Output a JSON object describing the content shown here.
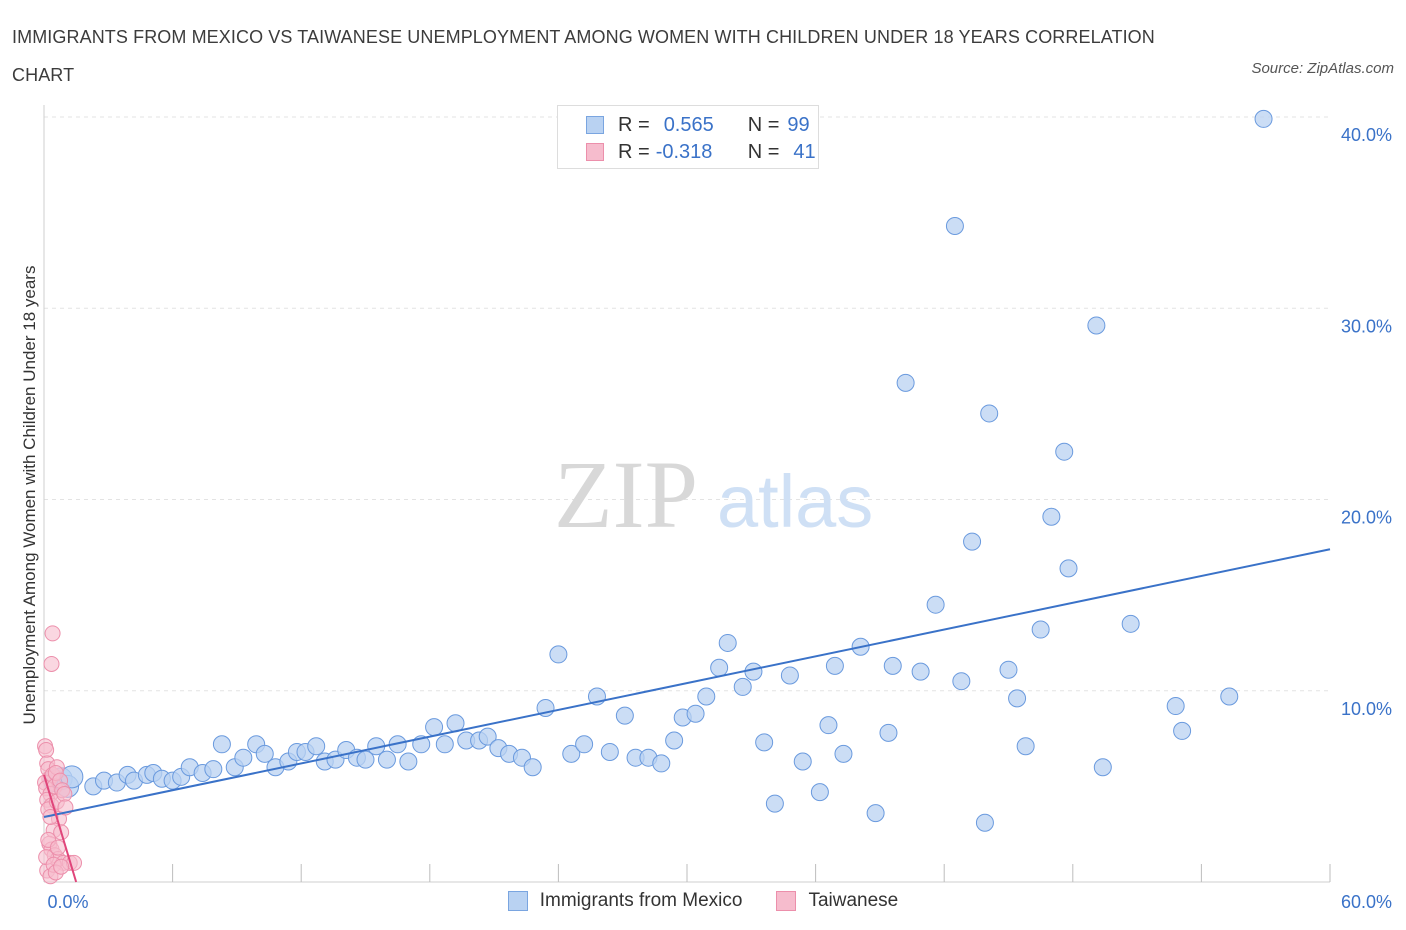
{
  "title": "IMMIGRANTS FROM MEXICO VS TAIWANESE UNEMPLOYMENT AMONG WOMEN WITH CHILDREN UNDER 18 YEARS CORRELATION CHART",
  "source": "Source: ZipAtlas.com",
  "watermark": {
    "zip": "ZIP",
    "atlas": "atlas"
  },
  "colors": {
    "blue": "#3a72c8",
    "blue_fill": "#b9d2f2",
    "pink": "#e0457a",
    "pink_fill": "#f6bccd",
    "grid": "#e3e3e3"
  },
  "legend": [
    {
      "r_label": "R =",
      "r_value": "0.565",
      "n_label": "N =",
      "n_value": "99"
    },
    {
      "r_label": "R =",
      "r_value": "-0.318",
      "n_label": "N =",
      "n_value": "41"
    }
  ],
  "chart_data": {
    "type": "scatter",
    "ylabel": "Unemployment Among Women with Children Under 18 years",
    "xlim": [
      0,
      60
    ],
    "ylim": [
      0,
      40
    ],
    "x_tick_labels": [
      "0.0%",
      "60.0%"
    ],
    "y_tick_labels": [
      "10.0%",
      "20.0%",
      "30.0%",
      "40.0%"
    ],
    "y_ticks": [
      10,
      20,
      30,
      40
    ],
    "grid": true,
    "legend_position": "top-center",
    "series": [
      {
        "name": "Immigrants from Mexico",
        "color": "#3a72c8",
        "trend": {
          "x": [
            0,
            60
          ],
          "y": [
            3.4,
            17.4
          ]
        },
        "points": [
          [
            0.5,
            5.3
          ],
          [
            0.8,
            5.4
          ],
          [
            1.1,
            5.0
          ],
          [
            1.3,
            5.5
          ],
          [
            2.3,
            5.0
          ],
          [
            2.8,
            5.3
          ],
          [
            3.4,
            5.2
          ],
          [
            3.9,
            5.6
          ],
          [
            4.2,
            5.3
          ],
          [
            4.8,
            5.6
          ],
          [
            5.1,
            5.7
          ],
          [
            5.5,
            5.4
          ],
          [
            6.0,
            5.3
          ],
          [
            6.4,
            5.5
          ],
          [
            6.8,
            6.0
          ],
          [
            7.4,
            5.7
          ],
          [
            7.9,
            5.9
          ],
          [
            8.3,
            7.2
          ],
          [
            8.9,
            6.0
          ],
          [
            9.3,
            6.5
          ],
          [
            9.9,
            7.2
          ],
          [
            10.3,
            6.7
          ],
          [
            10.8,
            6.0
          ],
          [
            11.4,
            6.3
          ],
          [
            11.8,
            6.8
          ],
          [
            12.2,
            6.8
          ],
          [
            12.7,
            7.1
          ],
          [
            13.1,
            6.3
          ],
          [
            13.6,
            6.4
          ],
          [
            14.1,
            6.9
          ],
          [
            14.6,
            6.5
          ],
          [
            15.0,
            6.4
          ],
          [
            15.5,
            7.1
          ],
          [
            16.0,
            6.4
          ],
          [
            16.5,
            7.2
          ],
          [
            17.0,
            6.3
          ],
          [
            17.6,
            7.2
          ],
          [
            18.2,
            8.1
          ],
          [
            18.7,
            7.2
          ],
          [
            19.2,
            8.3
          ],
          [
            19.7,
            7.4
          ],
          [
            20.3,
            7.4
          ],
          [
            20.7,
            7.6
          ],
          [
            21.2,
            7.0
          ],
          [
            21.7,
            6.7
          ],
          [
            22.3,
            6.5
          ],
          [
            22.8,
            6.0
          ],
          [
            23.4,
            9.1
          ],
          [
            24.0,
            11.9
          ],
          [
            24.6,
            6.7
          ],
          [
            25.2,
            7.2
          ],
          [
            25.8,
            9.7
          ],
          [
            26.4,
            6.8
          ],
          [
            27.1,
            8.7
          ],
          [
            27.6,
            6.5
          ],
          [
            28.2,
            6.5
          ],
          [
            28.8,
            6.2
          ],
          [
            29.4,
            7.4
          ],
          [
            29.8,
            8.6
          ],
          [
            30.4,
            8.8
          ],
          [
            30.9,
            9.7
          ],
          [
            31.5,
            11.2
          ],
          [
            31.9,
            12.5
          ],
          [
            32.6,
            10.2
          ],
          [
            33.1,
            11.0
          ],
          [
            33.6,
            7.3
          ],
          [
            34.1,
            4.1
          ],
          [
            34.8,
            10.8
          ],
          [
            35.4,
            6.3
          ],
          [
            36.2,
            4.7
          ],
          [
            36.6,
            8.2
          ],
          [
            36.9,
            11.3
          ],
          [
            37.3,
            6.7
          ],
          [
            38.1,
            12.3
          ],
          [
            38.8,
            3.6
          ],
          [
            39.4,
            7.8
          ],
          [
            39.6,
            11.3
          ],
          [
            40.2,
            26.1
          ],
          [
            40.9,
            11.0
          ],
          [
            41.6,
            14.5
          ],
          [
            42.5,
            34.3
          ],
          [
            42.8,
            10.5
          ],
          [
            43.3,
            17.8
          ],
          [
            43.9,
            3.1
          ],
          [
            44.1,
            24.5
          ],
          [
            45.0,
            11.1
          ],
          [
            45.4,
            9.6
          ],
          [
            45.8,
            7.1
          ],
          [
            46.5,
            13.2
          ],
          [
            47.0,
            19.1
          ],
          [
            47.6,
            22.5
          ],
          [
            47.8,
            16.4
          ],
          [
            49.1,
            29.1
          ],
          [
            49.4,
            6.0
          ],
          [
            50.7,
            13.5
          ],
          [
            52.8,
            9.2
          ],
          [
            53.1,
            7.9
          ],
          [
            55.3,
            9.7
          ],
          [
            56.9,
            39.9
          ]
        ]
      },
      {
        "name": "Taiwanese",
        "color": "#e0457a",
        "trend": {
          "x": [
            0,
            1.5
          ],
          "y": [
            5.6,
            0
          ]
        },
        "points": [
          [
            0.05,
            7.1
          ],
          [
            0.1,
            6.9
          ],
          [
            0.15,
            6.2
          ],
          [
            0.2,
            5.9
          ],
          [
            0.25,
            5.4
          ],
          [
            0.05,
            5.2
          ],
          [
            0.1,
            4.9
          ],
          [
            0.3,
            4.6
          ],
          [
            0.15,
            4.3
          ],
          [
            0.35,
            4.0
          ],
          [
            0.2,
            3.8
          ],
          [
            0.4,
            5.6
          ],
          [
            0.5,
            5.0
          ],
          [
            0.6,
            4.2
          ],
          [
            0.7,
            3.3
          ],
          [
            0.45,
            2.7
          ],
          [
            0.8,
            2.6
          ],
          [
            0.25,
            2.0
          ],
          [
            0.35,
            1.7
          ],
          [
            0.5,
            1.4
          ],
          [
            0.65,
            1.2
          ],
          [
            0.9,
            1.0
          ],
          [
            1.2,
            1.0
          ],
          [
            1.4,
            1.0
          ],
          [
            0.15,
            0.6
          ],
          [
            0.3,
            0.3
          ],
          [
            0.4,
            13.0
          ],
          [
            0.35,
            11.4
          ],
          [
            0.6,
            6.0
          ],
          [
            0.55,
            5.7
          ],
          [
            0.75,
            5.3
          ],
          [
            0.85,
            4.8
          ],
          [
            0.95,
            4.6
          ],
          [
            1.0,
            3.9
          ],
          [
            0.3,
            3.4
          ],
          [
            0.2,
            2.2
          ],
          [
            0.1,
            1.3
          ],
          [
            0.45,
            0.9
          ],
          [
            0.55,
            0.5
          ],
          [
            0.65,
            1.8
          ],
          [
            0.8,
            0.8
          ]
        ]
      }
    ]
  }
}
